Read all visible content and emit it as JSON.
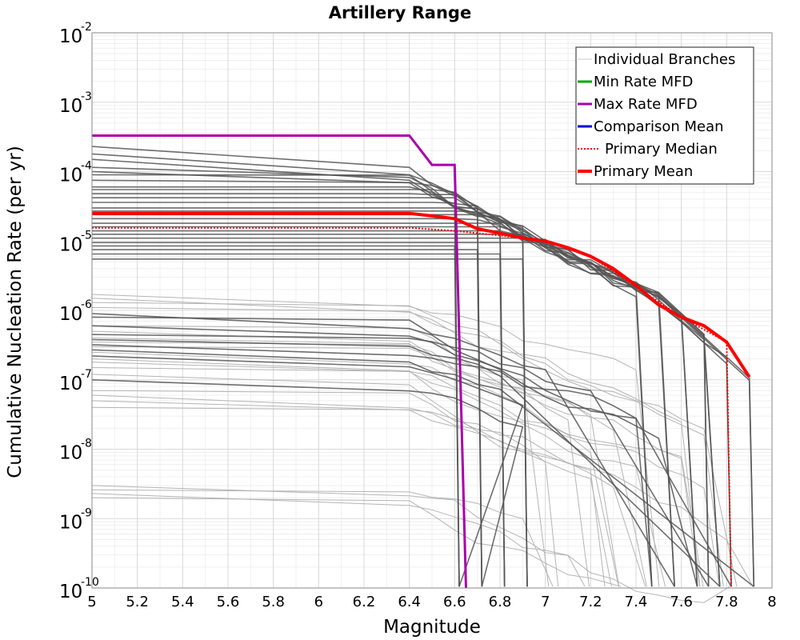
{
  "chart_data": {
    "type": "line",
    "title": "Artillery Range",
    "xlabel": "Magnitude",
    "ylabel": "Cumulative Nucleation Rate (per yr)",
    "xlim": [
      5,
      8
    ],
    "ylim": [
      1e-10,
      0.01
    ],
    "yscale": "log",
    "grid": true,
    "legend_position": "top-right",
    "xticks": [
      "5",
      "5.2",
      "5.4",
      "5.6",
      "5.8",
      "6",
      "6.2",
      "6.4",
      "6.6",
      "6.8",
      "7",
      "7.2",
      "7.4",
      "7.6",
      "7.8",
      "8"
    ],
    "yticks": [
      {
        "base": "10",
        "exp": "-2"
      },
      {
        "base": "10",
        "exp": "-3"
      },
      {
        "base": "10",
        "exp": "-4"
      },
      {
        "base": "10",
        "exp": "-5"
      },
      {
        "base": "10",
        "exp": "-6"
      },
      {
        "base": "10",
        "exp": "-7"
      },
      {
        "base": "10",
        "exp": "-8"
      },
      {
        "base": "10",
        "exp": "-9"
      },
      {
        "base": "10",
        "exp": "-10"
      }
    ],
    "legend": [
      {
        "label": "Individual Branches",
        "color": "#c8c8c8",
        "style": "thin"
      },
      {
        "label": "Min Rate MFD",
        "color": "#00aa00",
        "style": "solid"
      },
      {
        "label": "Max Rate MFD",
        "color": "#aa00aa",
        "style": "solid"
      },
      {
        "label": "Comparison Mean",
        "color": "#0000dd",
        "style": "solid"
      },
      {
        "label": "Primary Median",
        "color": "#ff0000",
        "style": "dotted"
      },
      {
        "label": "Primary Mean",
        "color": "#ff0000",
        "style": "thick"
      }
    ],
    "series": [
      {
        "name": "Max Rate MFD",
        "color": "#aa00aa",
        "x": [
          5.0,
          6.4,
          6.5,
          6.6,
          6.65
        ],
        "y": [
          0.00033,
          0.00033,
          0.000125,
          0.000125,
          1e-10
        ]
      },
      {
        "name": "Primary Mean",
        "color": "#ff0000",
        "x": [
          5.0,
          6.4,
          6.5,
          6.6,
          6.7,
          6.8,
          6.9,
          7.0,
          7.1,
          7.2,
          7.3,
          7.4,
          7.5,
          7.6,
          7.7,
          7.8,
          7.9
        ],
        "y": [
          2.5e-05,
          2.5e-05,
          2.3e-05,
          2.1e-05,
          1.5e-05,
          1.3e-05,
          1.1e-05,
          1e-05,
          8e-06,
          6e-06,
          4e-06,
          2.3e-06,
          1.2e-06,
          8e-07,
          6e-07,
          3.5e-07,
          1.1e-07
        ]
      },
      {
        "name": "Primary Median",
        "color": "#ff0000",
        "x": [
          5.0,
          6.4,
          6.6,
          6.8,
          7.0,
          7.2,
          7.4,
          7.6,
          7.8,
          7.82
        ],
        "y": [
          1.55e-05,
          1.55e-05,
          1.4e-05,
          1.2e-05,
          1e-05,
          6e-06,
          2.2e-06,
          8e-07,
          3.5e-07,
          1e-10
        ]
      }
    ],
    "branches_dark": {
      "color": "#555555",
      "levels": [
        0.00023,
        0.00018,
        0.00015,
        0.000115,
        0.0001,
        9e-05,
        7.5e-05,
        6e-05,
        5.5e-05,
        4.8e-05,
        4.2e-05,
        3.6e-05,
        3e-05,
        2.7e-05,
        2.4e-05,
        2.1e-05,
        1.8e-05,
        1.6e-05,
        1.4e-05,
        1.25e-05,
        1.1e-05,
        9.5e-06,
        8.5e-06,
        7.5e-06,
        6.5e-06,
        5.5e-06,
        9e-07,
        8e-07,
        6e-07,
        4.5e-07,
        3.8e-07,
        3.2e-07,
        2.7e-07,
        2.2e-07,
        1e-07
      ],
      "cutoffs": [
        6.6,
        6.7,
        6.8,
        6.9,
        7.45,
        7.55,
        7.65,
        7.7,
        7.75,
        7.8,
        7.9
      ]
    },
    "branches_light": {
      "color": "#b4b4b4",
      "levels": [
        1.7e-06,
        1.5e-06,
        1.3e-06,
        1.1e-06,
        6e-07,
        5e-07,
        4e-07,
        3.5e-07,
        3e-07,
        2.5e-07,
        2e-07,
        1.8e-07,
        1.5e-07,
        1.2e-07,
        7e-08,
        6e-08,
        5e-08,
        4e-08,
        3e-09,
        2.6e-09,
        2.3e-09,
        2e-09
      ]
    }
  }
}
